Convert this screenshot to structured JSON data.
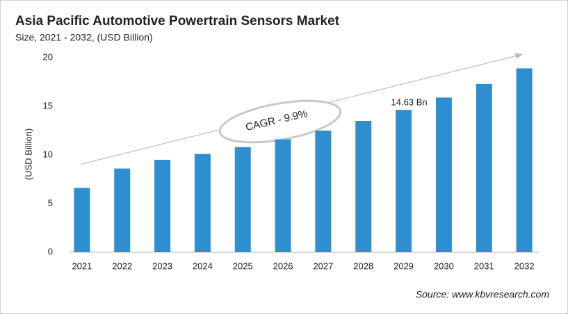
{
  "chart_data": {
    "type": "bar",
    "title": "Asia Pacific Automotive Powertrain Sensors Market",
    "subtitle": "Size, 2021 - 2032, (USD Billion)",
    "y_label": "(USD Billion)",
    "annotation": "CAGR - 9.9%",
    "source": "Source: www.kbvresearch.com",
    "categories": [
      "2021",
      "2022",
      "2023",
      "2024",
      "2025",
      "2026",
      "2027",
      "2028",
      "2029",
      "2030",
      "2031",
      "2032"
    ],
    "values": [
      6.6,
      8.6,
      9.5,
      10.1,
      10.8,
      11.6,
      12.5,
      13.5,
      14.63,
      15.9,
      17.3,
      18.9
    ],
    "value_labels": [
      null,
      null,
      null,
      null,
      null,
      null,
      null,
      null,
      "14.63 Bn",
      null,
      null,
      null
    ],
    "color": "#2e8fd0",
    "ylim": [
      0,
      20
    ],
    "yticks": [
      0,
      5,
      10,
      15,
      20
    ],
    "grid": false
  }
}
